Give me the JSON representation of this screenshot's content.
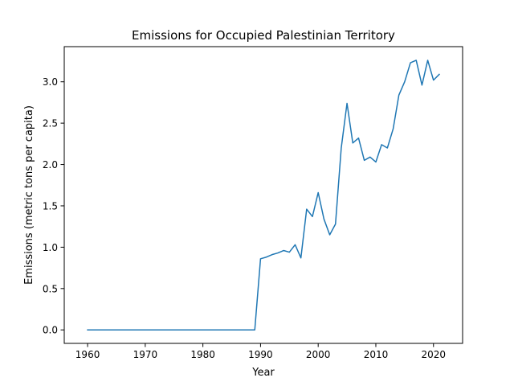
{
  "chart_data": {
    "type": "line",
    "title": "Emissions for Occupied Palestinian Territory",
    "xlabel": "Year",
    "ylabel": "Emissions (metric tons per capita)",
    "xlim": [
      1955.95,
      2025.05
    ],
    "ylim": [
      -0.163,
      3.425
    ],
    "xticks": [
      1960,
      1970,
      1980,
      1990,
      2000,
      2010,
      2020
    ],
    "xtick_labels": [
      "1960",
      "1970",
      "1980",
      "1990",
      "2000",
      "2010",
      "2020"
    ],
    "yticks": [
      0.0,
      0.5,
      1.0,
      1.5,
      2.0,
      2.5,
      3.0
    ],
    "ytick_labels": [
      "0.0",
      "0.5",
      "1.0",
      "1.5",
      "2.0",
      "2.5",
      "3.0"
    ],
    "grid": false,
    "series": [
      {
        "color": "#1f77b4",
        "x": [
          1960,
          1961,
          1962,
          1963,
          1964,
          1965,
          1966,
          1967,
          1968,
          1969,
          1970,
          1971,
          1972,
          1973,
          1974,
          1975,
          1976,
          1977,
          1978,
          1979,
          1980,
          1981,
          1982,
          1983,
          1984,
          1985,
          1986,
          1987,
          1988,
          1989,
          1990,
          1991,
          1992,
          1993,
          1994,
          1995,
          1996,
          1997,
          1998,
          1999,
          2000,
          2001,
          2002,
          2003,
          2004,
          2005,
          2006,
          2007,
          2008,
          2009,
          2010,
          2011,
          2012,
          2013,
          2014,
          2015,
          2016,
          2017,
          2018,
          2019,
          2020,
          2021
        ],
        "y": [
          0,
          0,
          0,
          0,
          0,
          0,
          0,
          0,
          0,
          0,
          0,
          0,
          0,
          0,
          0,
          0,
          0,
          0,
          0,
          0,
          0,
          0,
          0,
          0,
          0,
          0,
          0,
          0,
          0,
          0,
          0.86,
          0.88,
          0.91,
          0.93,
          0.96,
          0.94,
          1.03,
          0.87,
          1.46,
          1.37,
          1.66,
          1.34,
          1.15,
          1.28,
          2.2,
          2.74,
          2.26,
          2.32,
          2.05,
          2.09,
          2.03,
          2.24,
          2.2,
          2.43,
          2.84,
          3.0,
          3.23,
          3.26,
          2.96,
          3.26,
          3.02,
          3.09
        ]
      }
    ]
  }
}
